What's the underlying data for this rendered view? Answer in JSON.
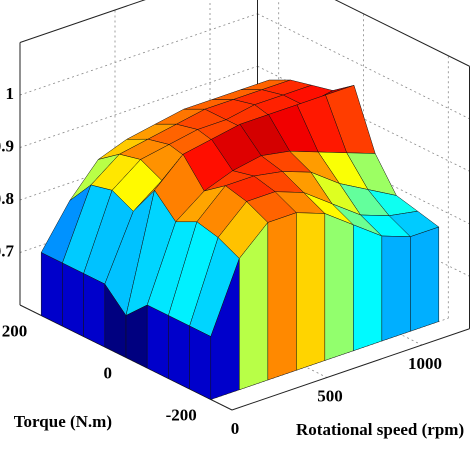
{
  "chart_data": {
    "type": "surface",
    "x_label": "Rotational speed (rpm)",
    "y_label": "Torque (N.m)",
    "x": [
      0,
      150,
      300,
      450,
      600,
      750,
      900,
      1050,
      1200
    ],
    "y": [
      -200,
      -150,
      -100,
      -50,
      0,
      50,
      100,
      150,
      200
    ],
    "z": [
      [
        0.72,
        0.85,
        0.9,
        0.9,
        0.88,
        0.84,
        0.8,
        0.78,
        0.78
      ],
      [
        0.72,
        0.87,
        0.92,
        0.92,
        0.9,
        0.86,
        0.82,
        0.8,
        0.79
      ],
      [
        0.72,
        0.88,
        0.93,
        0.93,
        0.92,
        0.9,
        0.86,
        0.83,
        0.8
      ],
      [
        0.72,
        0.86,
        0.9,
        0.92,
        0.93,
        0.92,
        0.9,
        0.88,
        0.86
      ],
      [
        0.68,
        0.9,
        0.95,
        0.96,
        0.97,
        0.97,
        0.97,
        0.97,
        0.97
      ],
      [
        0.72,
        0.84,
        0.88,
        0.9,
        0.91,
        0.92,
        0.92,
        0.93,
        0.94
      ],
      [
        0.72,
        0.86,
        0.9,
        0.91,
        0.92,
        0.92,
        0.93,
        0.93,
        0.93
      ],
      [
        0.72,
        0.85,
        0.89,
        0.9,
        0.91,
        0.92,
        0.92,
        0.92,
        0.92
      ],
      [
        0.72,
        0.8,
        0.86,
        0.88,
        0.89,
        0.9,
        0.9,
        0.9,
        0.9
      ]
    ],
    "xlim": [
      0,
      1250
    ],
    "ylim": [
      -250,
      250
    ],
    "zlim": [
      0.6,
      1.1
    ],
    "xticks": [
      0,
      500,
      1000
    ],
    "yticks": [
      -200,
      0,
      200
    ],
    "zticks": [
      0.7,
      0.8,
      0.9,
      1
    ],
    "colormap": "jet",
    "clim": [
      0.7,
      0.97
    ],
    "grid": true
  }
}
